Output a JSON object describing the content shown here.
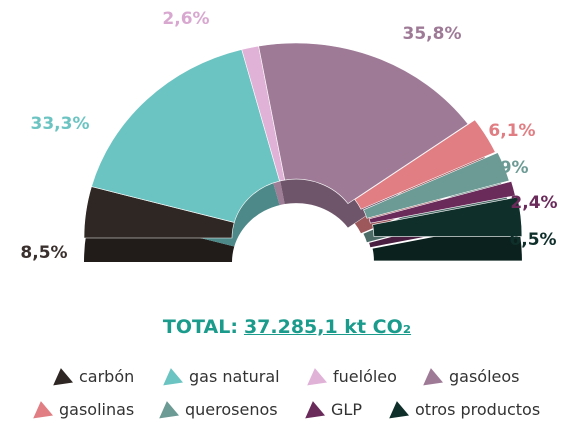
{
  "chart_data": {
    "type": "pie",
    "style": "3d-half-donut",
    "categories": [
      "carbón",
      "gas natural",
      "fuelóleo",
      "gasóleos",
      "gasolinas",
      "querosenos",
      "GLP",
      "otros productos"
    ],
    "values": [
      8.5,
      33.3,
      2.6,
      35.8,
      6.1,
      4.9,
      2.4,
      6.5
    ],
    "labels": [
      "8,5%",
      "33,3%",
      "2,6%",
      "35,8%",
      "6,1%",
      "4,9%",
      "2,4%",
      "6,5%"
    ],
    "colors": [
      "#2f2724",
      "#6cc4c2",
      "#e1b2d8",
      "#9e7a97",
      "#e07e83",
      "#6c9a94",
      "#6a2b5b",
      "#0f2f2b"
    ],
    "label_colors": [
      "#3a302d",
      "#6cc4c2",
      "#d8a8d0",
      "#9e7a97",
      "#e07e83",
      "#6c9a94",
      "#6a2b5b",
      "#0f2f2b"
    ],
    "legend_placement": "bottom"
  },
  "total": {
    "label": "TOTAL:",
    "value": "37.285,1  kt CO₂"
  }
}
